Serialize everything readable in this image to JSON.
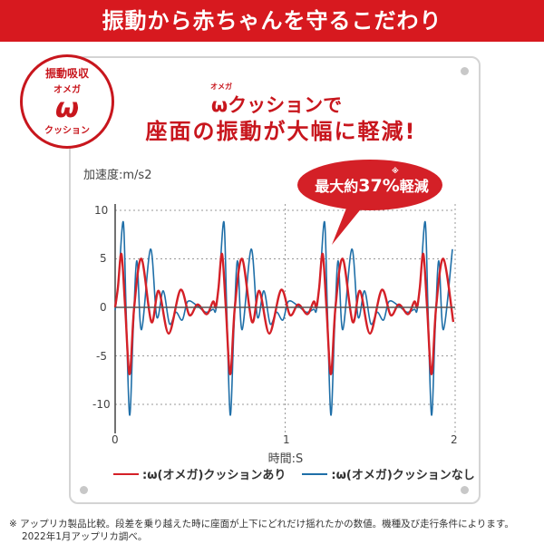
{
  "header": {
    "title": "振動から赤ちゃんを守るこだわり"
  },
  "badge": {
    "line1": "振動吸収",
    "line2": "オメガ",
    "symbol": "ω",
    "line3": "クッション"
  },
  "headline": {
    "ruby": "オメガ",
    "line1": "ωクッションで",
    "line2": "座面の振動が大幅に軽減!"
  },
  "callout": {
    "prefix": "最大約",
    "value": "37%",
    "suffix": "軽減",
    "mark": "※"
  },
  "footnote": {
    "line1": "※ アップリカ製品比較。段差を乗り越えた時に座面が上下にどれだけ揺れたかの数値。機種及び走行条件によります。",
    "line2": "2022年1月アップリカ調べ。"
  },
  "colors": {
    "header": "#d7191f",
    "red_series": "#d42027",
    "blue_series": "#1f6fa8"
  },
  "chart_data": {
    "type": "line",
    "ylabel": "加速度:m/s2",
    "xlabel": "時間:S",
    "xlim": [
      0,
      2
    ],
    "ylim": [
      -12,
      12
    ],
    "xticks": [
      "0",
      "1",
      "2"
    ],
    "yticks": [
      "10",
      "5",
      "0",
      "-5",
      "-10"
    ],
    "grid": "dotted, at y=±5, ±10 and x=1, 2",
    "legend_placement": "bottom",
    "cycle_period_s": 0.592,
    "series": [
      {
        "name": ":ω(オメガ)クッションあり",
        "color": "#d42027",
        "cycle_points": [
          [
            0,
            0
          ],
          [
            0.016,
            2
          ],
          [
            0.037,
            5.5
          ],
          [
            0.059,
            0
          ],
          [
            0.085,
            -6.9
          ],
          [
            0.112,
            0
          ],
          [
            0.155,
            5.0
          ],
          [
            0.213,
            -1.5
          ],
          [
            0.256,
            1.7
          ],
          [
            0.315,
            -2.7
          ],
          [
            0.384,
            1.8
          ],
          [
            0.437,
            -0.8
          ],
          [
            0.485,
            0.3
          ],
          [
            0.539,
            -0.7
          ],
          [
            0.576,
            0.6
          ]
        ]
      },
      {
        "name": ":ω(オメガ)クッションなし",
        "color": "#1f6fa8",
        "cycle_points": [
          [
            0,
            -0.3
          ],
          [
            0.021,
            3
          ],
          [
            0.048,
            8.8
          ],
          [
            0.064,
            0
          ],
          [
            0.085,
            -11.1
          ],
          [
            0.107,
            -2
          ],
          [
            0.128,
            4.8
          ],
          [
            0.155,
            -2.3
          ],
          [
            0.208,
            6.0
          ],
          [
            0.245,
            -1.0
          ],
          [
            0.283,
            1.7
          ],
          [
            0.32,
            -1.7
          ],
          [
            0.357,
            -0.5
          ],
          [
            0.395,
            -1.3
          ],
          [
            0.427,
            0.6
          ],
          [
            0.48,
            0.2
          ],
          [
            0.533,
            -0.5
          ],
          [
            0.576,
            -0.2
          ]
        ]
      }
    ]
  }
}
